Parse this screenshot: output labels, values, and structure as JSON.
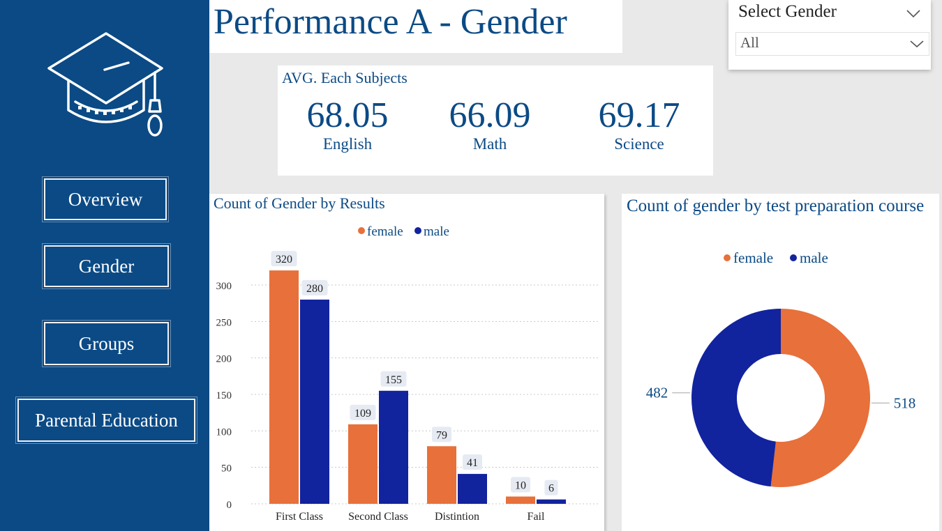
{
  "nav": {
    "items": [
      {
        "label": "Overview"
      },
      {
        "label": "Gender"
      },
      {
        "label": "Groups"
      },
      {
        "label": "Parental Education"
      }
    ]
  },
  "header": {
    "title": "Performance A - Gender"
  },
  "filter": {
    "title": "Select Gender",
    "selected": "All"
  },
  "kpi": {
    "title": "AVG. Each Subjects",
    "items": [
      {
        "value": "68.05",
        "label": "English"
      },
      {
        "value": "66.09",
        "label": "Math"
      },
      {
        "value": "69.17",
        "label": "Science"
      }
    ]
  },
  "colors": {
    "female": "#e8703a",
    "male": "#12239e",
    "brand": "#0b4a85"
  },
  "chart_data": [
    {
      "type": "bar",
      "title": "Count of Gender by Results",
      "categories": [
        "First Class",
        "Second Class",
        "Distintion",
        "Fail"
      ],
      "series": [
        {
          "name": "female",
          "values": [
            320,
            109,
            79,
            10
          ]
        },
        {
          "name": "male",
          "values": [
            280,
            155,
            41,
            6
          ]
        }
      ],
      "ylim": [
        0,
        300
      ],
      "yticks": [
        0,
        50,
        100,
        150,
        200,
        250,
        300
      ],
      "legend": "top-center",
      "grid": true
    },
    {
      "type": "pie",
      "title": "Count of gender by test preparation course",
      "labels": [
        "female",
        "male"
      ],
      "values": [
        518,
        482
      ],
      "donut": true,
      "legend": "top-center"
    }
  ]
}
